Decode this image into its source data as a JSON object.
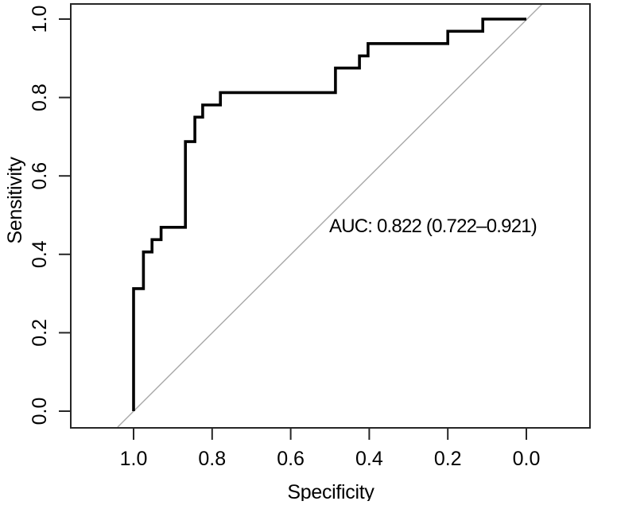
{
  "figure": {
    "description": "ROC curve plot with AUC annotation",
    "background_color": "#ffffff",
    "axis_color": "#262626",
    "text_color": "#000000"
  },
  "chart_data": {
    "type": "line",
    "subtype": "roc_step_curve",
    "title": "",
    "xlabel": "Specificity",
    "ylabel": "Sensitivity",
    "grid": false,
    "legend": "none",
    "x_axis": {
      "label": "Specificity",
      "tick_labels": [
        "1.0",
        "0.8",
        "0.6",
        "0.4",
        "0.2",
        "0.0"
      ],
      "range": [
        1.0,
        0.0
      ],
      "reversed": true
    },
    "y_axis": {
      "label": "Sensitivity",
      "tick_labels": [
        "0.0",
        "0.2",
        "0.4",
        "0.6",
        "0.8",
        "1.0"
      ],
      "range": [
        0.0,
        1.0
      ]
    },
    "annotation": {
      "auc_label": "AUC: 0.822 (0.722–0.921)",
      "auc": 0.822,
      "ci_lower": 0.722,
      "ci_upper": 0.921
    },
    "series": [
      {
        "name": "roc_curve",
        "color": "#000000",
        "points_spec_sens": [
          [
            1.0,
            0.0
          ],
          [
            1.0,
            0.3125
          ],
          [
            0.975,
            0.3125
          ],
          [
            0.975,
            0.406
          ],
          [
            0.953,
            0.406
          ],
          [
            0.953,
            0.4375
          ],
          [
            0.93,
            0.4375
          ],
          [
            0.93,
            0.469
          ],
          [
            0.868,
            0.469
          ],
          [
            0.868,
            0.6875
          ],
          [
            0.844,
            0.6875
          ],
          [
            0.844,
            0.75
          ],
          [
            0.824,
            0.75
          ],
          [
            0.824,
            0.781
          ],
          [
            0.779,
            0.781
          ],
          [
            0.779,
            0.8125
          ],
          [
            0.486,
            0.8125
          ],
          [
            0.486,
            0.875
          ],
          [
            0.425,
            0.875
          ],
          [
            0.425,
            0.906
          ],
          [
            0.403,
            0.906
          ],
          [
            0.403,
            0.9375
          ],
          [
            0.2,
            0.9375
          ],
          [
            0.2,
            0.969
          ],
          [
            0.111,
            0.969
          ],
          [
            0.111,
            1.0
          ],
          [
            0.0,
            1.0
          ]
        ]
      },
      {
        "name": "chance_diagonal",
        "color": "#a8a8a8",
        "points_spec_sens": [
          [
            1.0,
            0.0
          ],
          [
            0.0,
            1.0
          ]
        ]
      }
    ]
  }
}
